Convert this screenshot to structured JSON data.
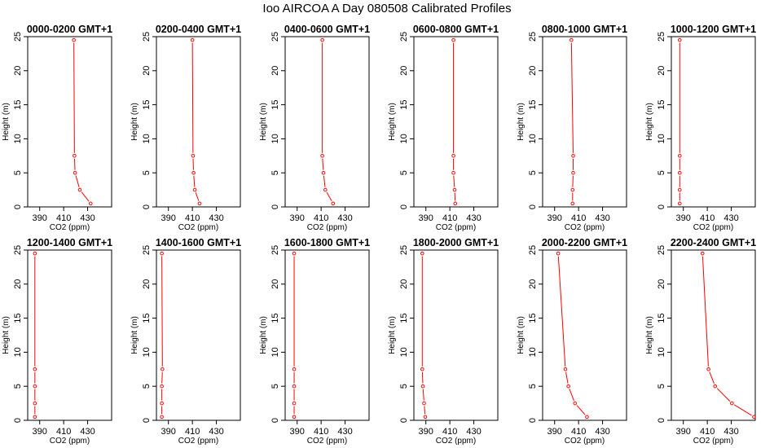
{
  "title": "Ioo AIRCOA A  Day 080508  Calibrated Profiles",
  "colors": {
    "profile": "#ff0000",
    "axis": "#000000",
    "background": "#ffffff"
  },
  "chart_data": {
    "type": "line",
    "layout": "small multiples, 2 rows x 6 columns",
    "xlabel": "CO2 (ppm)",
    "ylabel": "Height (m)",
    "xlim": [
      380,
      450
    ],
    "ylim": [
      0,
      25
    ],
    "xticks": [
      390,
      410,
      430
    ],
    "yticks": [
      0,
      5,
      10,
      15,
      20,
      25
    ],
    "heights": [
      0.5,
      2.5,
      5,
      7.5,
      24.5
    ],
    "grid": false,
    "markers": "open circles",
    "panels": [
      {
        "title": "0000-0200 GMT+1",
        "co2": [
          432.5,
          423.5,
          419.5,
          419,
          418.5
        ]
      },
      {
        "title": "0200-0400 GMT+1",
        "co2": [
          416,
          412,
          411,
          410.5,
          410
        ]
      },
      {
        "title": "0400-0600 GMT+1",
        "co2": [
          420,
          413.5,
          412,
          411,
          411
        ]
      },
      {
        "title": "0600-0800 GMT+1",
        "co2": [
          414.5,
          414,
          413,
          413,
          413
        ]
      },
      {
        "title": "0800-1000 GMT+1",
        "co2": [
          405,
          405,
          405.5,
          405.5,
          404
        ]
      },
      {
        "title": "1000-1200 GMT+1",
        "co2": [
          387,
          387,
          387,
          387,
          387
        ]
      },
      {
        "title": "1200-1400 GMT+1",
        "co2": [
          386,
          386,
          386,
          386,
          386
        ]
      },
      {
        "title": "1400-1600 GMT+1",
        "co2": [
          384.5,
          384.5,
          384.5,
          385,
          384.5
        ]
      },
      {
        "title": "1600-1800 GMT+1",
        "co2": [
          387.5,
          387.5,
          387.5,
          387.5,
          387.5
        ]
      },
      {
        "title": "1800-2000 GMT+1",
        "co2": [
          389.5,
          388.5,
          387.5,
          387,
          387
        ]
      },
      {
        "title": "2000-2200 GMT+1",
        "co2": [
          417,
          407,
          401.5,
          399,
          393
        ]
      },
      {
        "title": "2200-2400 GMT+1",
        "co2": [
          449,
          430.5,
          416.5,
          411,
          406
        ]
      }
    ]
  }
}
